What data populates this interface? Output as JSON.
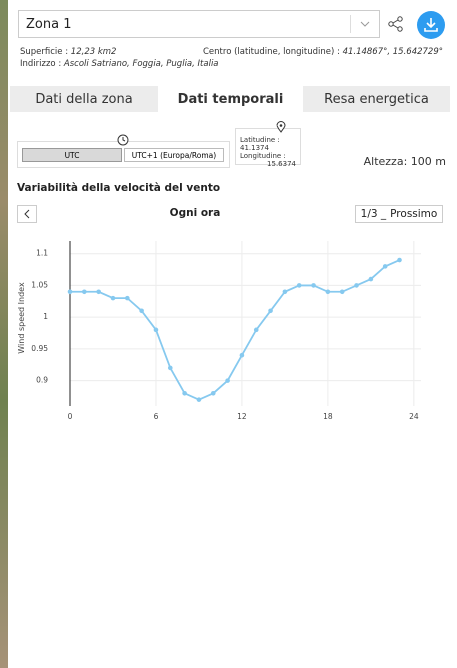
{
  "header": {
    "zone": "Zona 1"
  },
  "info": {
    "area_label": "Superficie :",
    "area_value": "12,23 km2",
    "center_label": "Centro (latitudine, longitudine) :",
    "center_value": "41.14867°, 15.642729°",
    "address_label": "Indirizzo :",
    "address_value": "Ascoli Satriano, Foggia, Puglia, Italia"
  },
  "tabs": [
    "Dati della zona",
    "Dati temporali",
    "Resa energetica"
  ],
  "timezone": {
    "options": [
      "UTC",
      "UTC+1 (Europa/Roma)"
    ]
  },
  "location": {
    "lat_label": "Latitudine :",
    "lat_value": "41.1374",
    "lon_label": "Longitudine :",
    "lon_value": "15.6374"
  },
  "height": "Altezza: 100 m",
  "section_title": "Variabilità della velocità del vento",
  "nav": {
    "period": "Ogni ora",
    "page": "1/3 _",
    "next": "Prossimo"
  },
  "chart_data": {
    "type": "line",
    "y_label": "Wind speed Index",
    "color": "#86c9ef",
    "x": [
      0,
      1,
      2,
      3,
      4,
      5,
      6,
      7,
      8,
      9,
      10,
      11,
      12,
      13,
      14,
      15,
      16,
      17,
      18,
      19,
      20,
      21,
      22,
      23
    ],
    "series": [
      {
        "name": "Wind speed Index",
        "color": "#86c9ef",
        "values": [
          1.04,
          1.04,
          1.04,
          1.03,
          1.03,
          1.01,
          0.98,
          0.92,
          0.88,
          0.87,
          0.88,
          0.9,
          0.94,
          0.98,
          1.01,
          1.04,
          1.05,
          1.05,
          1.04,
          1.04,
          1.05,
          1.06,
          1.08,
          1.09
        ]
      }
    ],
    "xlim": [
      0,
      24.5
    ],
    "xticks": [
      0,
      6,
      12,
      18,
      24
    ],
    "ylim": [
      0.86,
      1.12
    ],
    "yticks": [
      0.9,
      0.95,
      1,
      1.05,
      1.1
    ],
    "grid": true
  }
}
